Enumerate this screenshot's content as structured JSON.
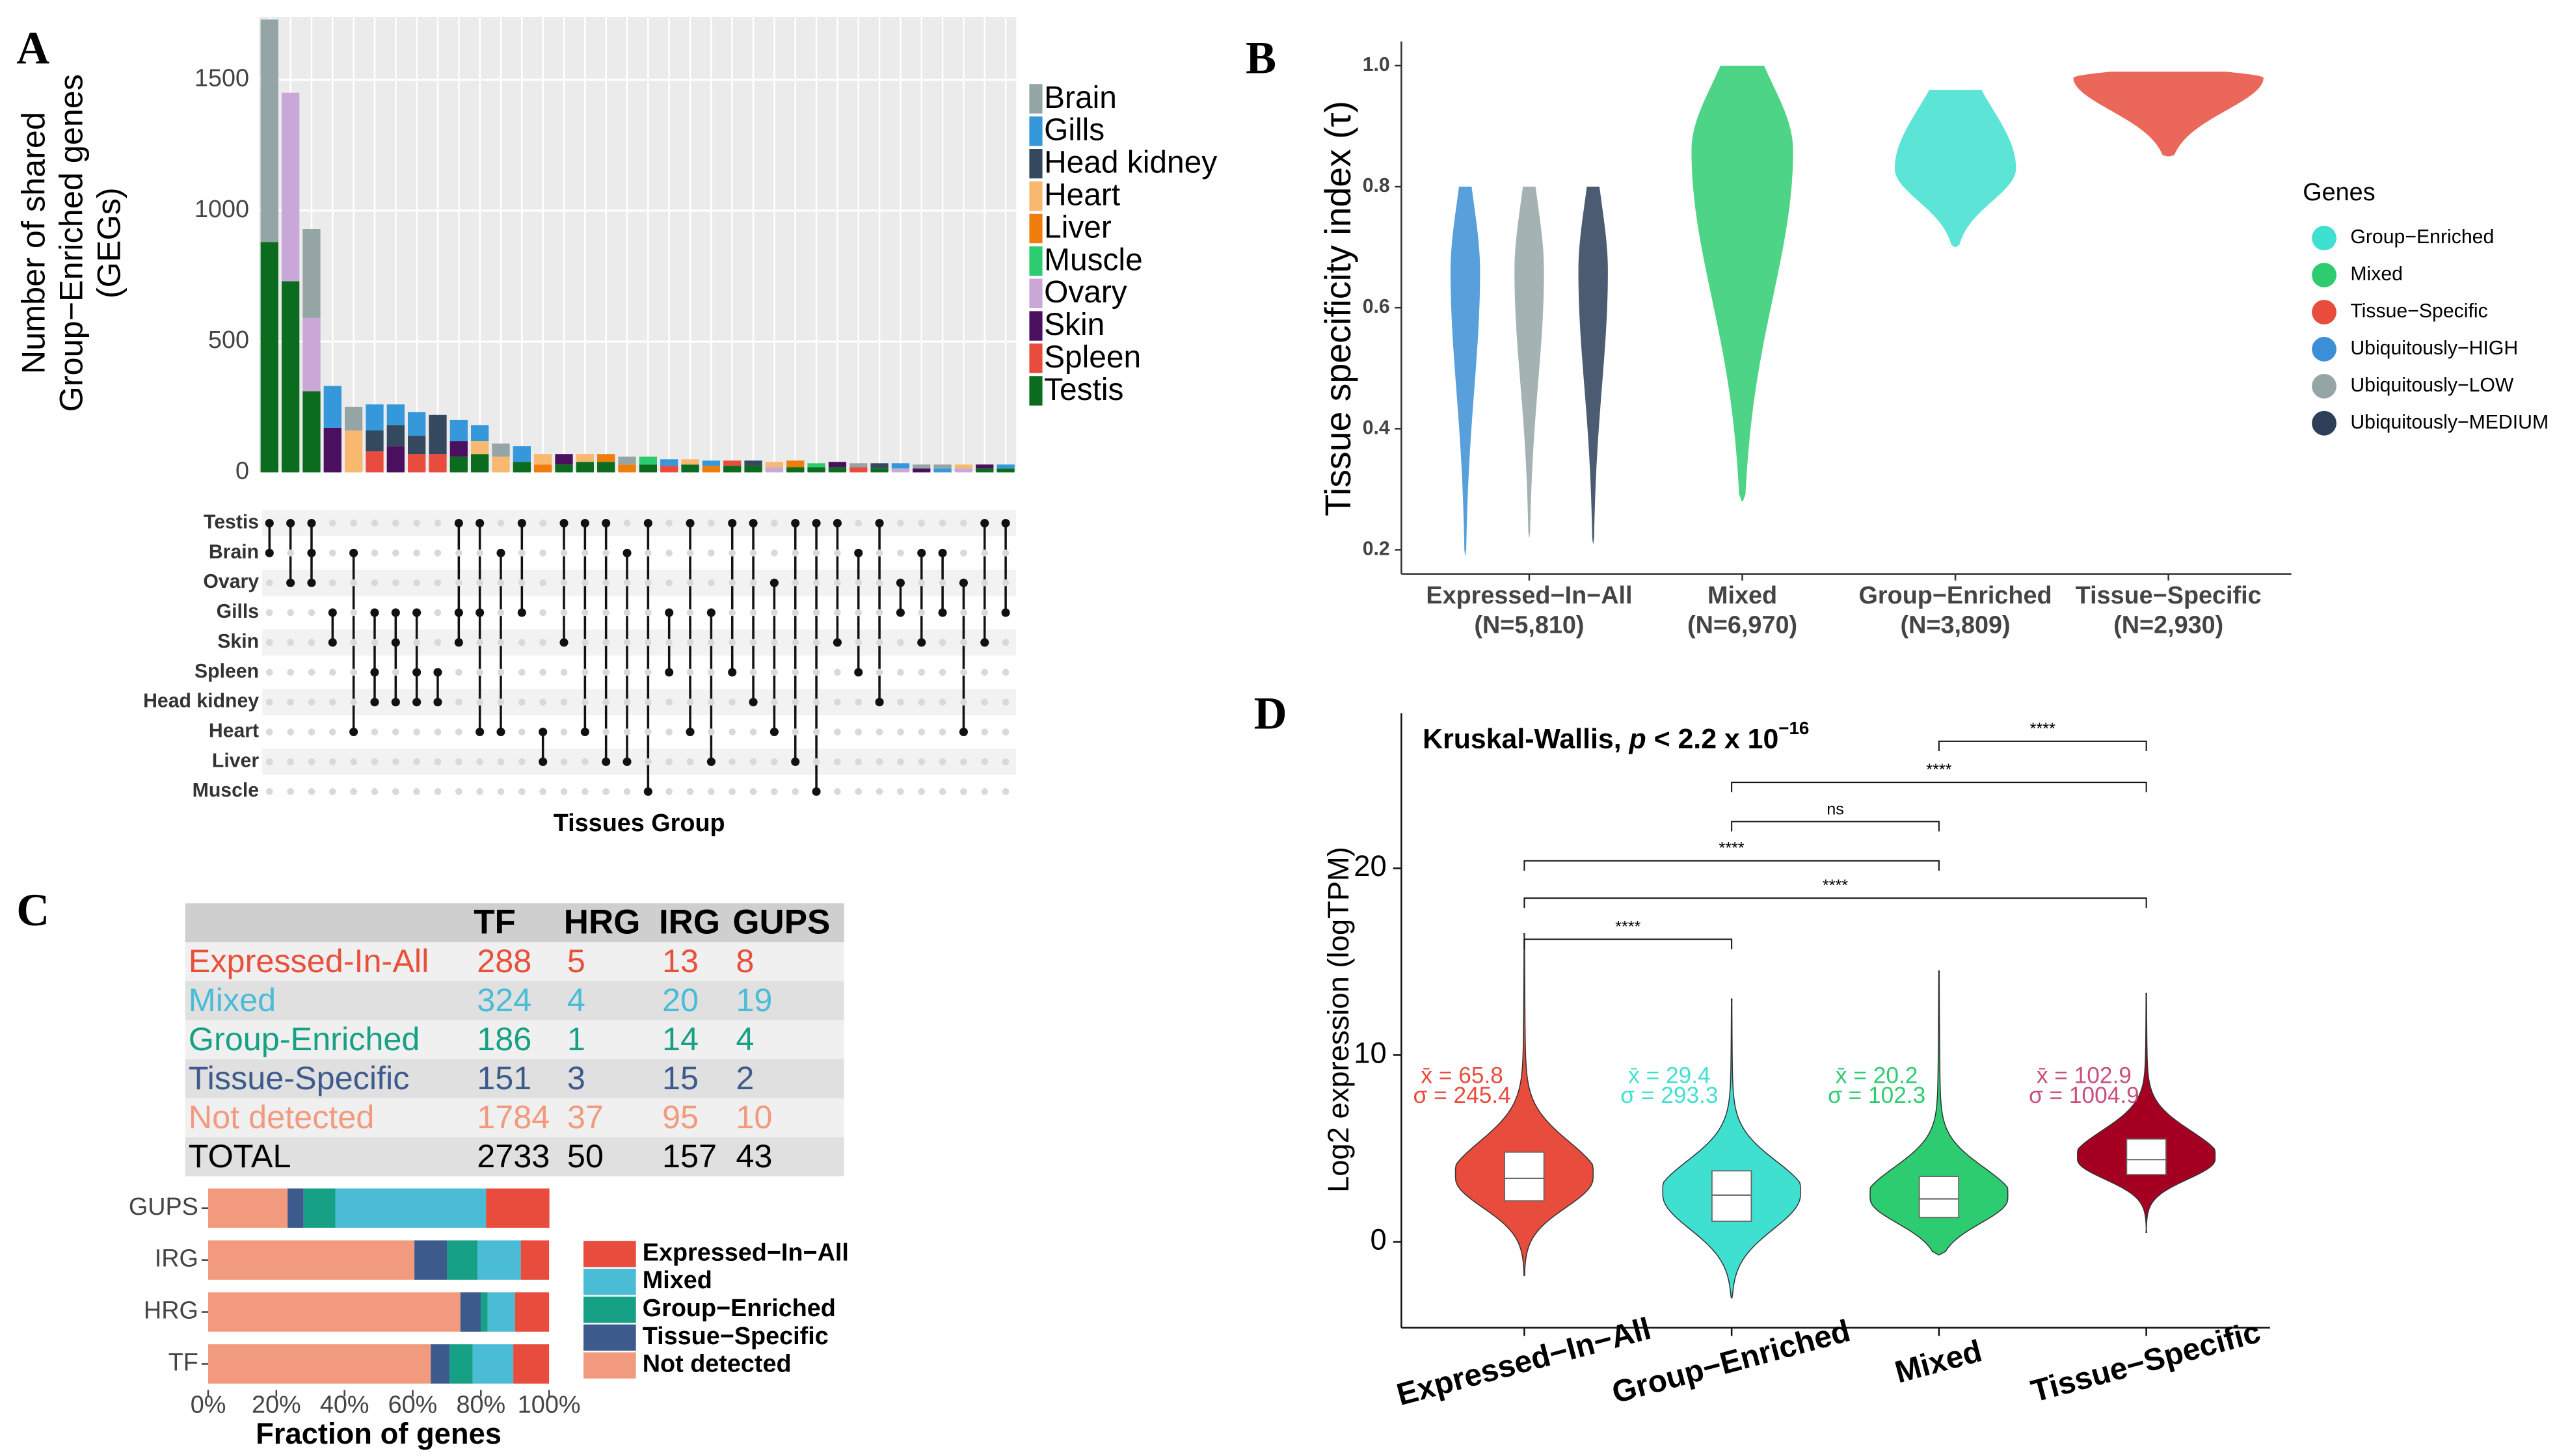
{
  "panel_labels": [
    "A",
    "B",
    "C",
    "D"
  ],
  "chart_data": [
    {
      "type": "upset",
      "ylabel": [
        "Number of shared",
        "Group−Enriched genes",
        "(GEGs)"
      ],
      "xlabel": "Tissues Group",
      "ylim": [
        0,
        1740
      ],
      "yticks": [
        0,
        500,
        1000,
        1500
      ],
      "grid": true,
      "matrix_rows": [
        "Testis",
        "Brain",
        "Ovary",
        "Gills",
        "Skin",
        "Spleen",
        "Head kidney",
        "Heart",
        "Liver",
        "Muscle"
      ],
      "series": [
        {
          "name": "Brain",
          "color": "#95a5a6",
          "values": [
            850,
            0,
            340,
            0,
            90,
            0,
            0,
            0,
            0,
            0,
            0,
            50,
            0,
            0,
            0,
            0,
            0,
            30,
            0,
            0,
            0,
            0,
            0,
            0,
            0,
            0,
            0,
            0,
            15,
            0,
            0,
            15,
            15,
            0,
            0,
            0
          ]
        },
        {
          "name": "Gills",
          "color": "#3498db",
          "values": [
            0,
            0,
            0,
            160,
            0,
            100,
            80,
            90,
            0,
            80,
            60,
            0,
            60,
            0,
            0,
            0,
            0,
            0,
            0,
            25,
            0,
            20,
            0,
            0,
            0,
            0,
            0,
            0,
            0,
            0,
            20,
            0,
            15,
            0,
            0,
            15
          ]
        },
        {
          "name": "Head kidney",
          "color": "#34495e",
          "values": [
            0,
            0,
            0,
            0,
            0,
            80,
            80,
            70,
            150,
            0,
            0,
            0,
            0,
            0,
            0,
            0,
            0,
            0,
            0,
            0,
            0,
            0,
            0,
            20,
            0,
            0,
            0,
            0,
            0,
            20,
            0,
            0,
            0,
            0,
            0,
            0
          ]
        },
        {
          "name": "Heart",
          "color": "#f8b870",
          "values": [
            0,
            0,
            0,
            0,
            160,
            0,
            0,
            0,
            0,
            0,
            50,
            60,
            0,
            40,
            0,
            30,
            0,
            0,
            0,
            0,
            20,
            0,
            0,
            0,
            20,
            0,
            0,
            0,
            0,
            0,
            0,
            0,
            0,
            15,
            0,
            0
          ]
        },
        {
          "name": "Liver",
          "color": "#ee7d0c",
          "values": [
            0,
            0,
            0,
            0,
            0,
            0,
            0,
            0,
            0,
            0,
            0,
            0,
            0,
            30,
            0,
            0,
            30,
            30,
            0,
            0,
            0,
            25,
            0,
            0,
            0,
            25,
            0,
            0,
            0,
            0,
            0,
            0,
            0,
            0,
            0,
            0
          ]
        },
        {
          "name": "Muscle",
          "color": "#2ecc71",
          "values": [
            0,
            0,
            0,
            0,
            0,
            0,
            0,
            0,
            0,
            0,
            0,
            0,
            0,
            0,
            0,
            0,
            0,
            0,
            30,
            0,
            0,
            0,
            0,
            0,
            0,
            0,
            15,
            0,
            0,
            0,
            0,
            0,
            0,
            0,
            0,
            0
          ]
        },
        {
          "name": "Ovary",
          "color": "#c9a7d6",
          "values": [
            0,
            720,
            280,
            0,
            0,
            0,
            0,
            0,
            0,
            0,
            0,
            0,
            0,
            0,
            0,
            0,
            0,
            0,
            0,
            0,
            0,
            0,
            0,
            0,
            20,
            0,
            0,
            0,
            0,
            0,
            15,
            0,
            0,
            15,
            0,
            0
          ]
        },
        {
          "name": "Skin",
          "color": "#4a0f5e",
          "values": [
            0,
            0,
            0,
            170,
            0,
            0,
            100,
            0,
            0,
            60,
            0,
            0,
            0,
            0,
            40,
            0,
            0,
            0,
            0,
            0,
            0,
            0,
            0,
            0,
            0,
            0,
            0,
            20,
            0,
            0,
            0,
            15,
            0,
            0,
            15,
            0
          ]
        },
        {
          "name": "Spleen",
          "color": "#e74c3c",
          "values": [
            0,
            0,
            0,
            0,
            0,
            80,
            0,
            70,
            70,
            0,
            0,
            0,
            0,
            0,
            0,
            0,
            0,
            0,
            0,
            25,
            0,
            0,
            20,
            0,
            0,
            0,
            0,
            0,
            20,
            0,
            0,
            0,
            0,
            0,
            0,
            0
          ]
        },
        {
          "name": "Testis",
          "color": "#0b6b1e",
          "values": [
            880,
            730,
            310,
            0,
            0,
            0,
            0,
            0,
            0,
            60,
            70,
            0,
            40,
            0,
            30,
            40,
            40,
            0,
            30,
            0,
            30,
            0,
            25,
            25,
            0,
            20,
            20,
            20,
            0,
            15,
            0,
            0,
            0,
            0,
            15,
            15
          ]
        }
      ]
    },
    {
      "type": "violin_tau",
      "ylabel": "Tissue specificity index (τ)",
      "categories": [
        "Expressed−In−All",
        "Mixed",
        "Group−Enriched",
        "Tissue−Specific"
      ],
      "category_notes": [
        "(N=5,810)",
        "(N=6,970)",
        "(N=3,809)",
        "(N=2,930)"
      ],
      "ylim": [
        0.16,
        1.04
      ],
      "yticks": [
        0.2,
        0.4,
        0.6,
        0.8,
        {
          "value": 1,
          "label": "1.0"
        }
      ],
      "legend_title": "Genes",
      "series": [
        {
          "name": "Group−Enriched",
          "color": "#40e0d0",
          "category": 2,
          "min": 0.7,
          "max": 0.96,
          "peak": 0.83
        },
        {
          "name": "Mixed",
          "color": "#2ecc71",
          "category": 1,
          "min": 0.28,
          "max": 1.0,
          "peak": 0.86
        },
        {
          "name": "Tissue−Specific",
          "color": "#e74c3c",
          "category": 3,
          "min": 0.85,
          "max": 0.99,
          "peak": 0.98
        },
        {
          "name": "Ubiquitously−HIGH",
          "color": "#3a8fd6",
          "category": 0,
          "min": 0.19,
          "max": 0.8,
          "peak": 0.66
        },
        {
          "name": "Ubiquitously−LOW",
          "color": "#95a5a6",
          "category": 0,
          "min": 0.22,
          "max": 0.8,
          "peak": 0.66
        },
        {
          "name": "Ubiquitously−MEDIUM",
          "color": "#2c3e58",
          "category": 0,
          "min": 0.21,
          "max": 0.8,
          "peak": 0.66
        }
      ]
    },
    {
      "type": "stacked_barh",
      "categories": [
        "GUPS",
        "IRG",
        "HRG",
        "TF"
      ],
      "xlim": [
        0,
        100
      ],
      "xlabel": "Fraction of genes",
      "xticks": [
        {
          "value": 0,
          "label": "0%"
        },
        {
          "value": 20,
          "label": "20%"
        },
        {
          "value": 40,
          "label": "40%"
        },
        {
          "value": 60,
          "label": "60%"
        },
        {
          "value": 80,
          "label": "80%"
        },
        {
          "value": 100,
          "label": "100%"
        }
      ],
      "series": [
        {
          "name": "Expressed−In−All",
          "color": "#e74c3c",
          "values": [
            18.6,
            8.3,
            10,
            10.5
          ]
        },
        {
          "name": "Mixed",
          "color": "#4bbcd6",
          "values": [
            44.2,
            12.7,
            8,
            11.9
          ]
        },
        {
          "name": "Group−Enriched",
          "color": "#16a085",
          "values": [
            9.3,
            8.9,
            2,
            6.8
          ]
        },
        {
          "name": "Tissue−Specific",
          "color": "#3d5a8c",
          "values": [
            4.7,
            9.6,
            6,
            5.5
          ]
        },
        {
          "name": "Not detected",
          "color": "#f29a7e",
          "values": [
            23.3,
            60.5,
            74,
            65.3
          ]
        }
      ]
    },
    {
      "type": "violin_box",
      "title_parts": [
        "Kruskal-Wallis, ",
        "p",
        " < 2.2 x 10",
        "−16"
      ],
      "ylabel": "Log2 expression (logTPM)",
      "categories": [
        "Expressed−In−All",
        "Group−Enriched",
        "Mixed",
        "Tissue−Specific"
      ],
      "colors": [
        "#e74c3c",
        "#40e0d0",
        "#2ecc71",
        "#a50021"
      ],
      "label_colors": [
        "#e74c3c",
        "#40e0d0",
        "#2ecc71",
        "#c94f7c"
      ],
      "min": [
        -1.8,
        -3,
        -0.7,
        0.5
      ],
      "max": [
        16.5,
        13,
        14.5,
        13.3
      ],
      "q1": [
        2.2,
        1.1,
        1.3,
        3.6
      ],
      "median": [
        3.4,
        2.5,
        2.3,
        4.4
      ],
      "q3": [
        4.8,
        3.8,
        3.5,
        5.5
      ],
      "means": [
        65.8,
        29.4,
        20.2,
        102.9
      ],
      "mean_labels": [
        "x̄ = 65.8",
        "x̄ = 29.4",
        "x̄ = 20.2",
        "x̄ = 102.9"
      ],
      "sds": [
        245.4,
        293.3,
        102.3,
        1004.9
      ],
      "sd_labels": [
        "σ = 245.4",
        "σ = 293.3",
        "σ = 102.3",
        "σ = 1004.9"
      ],
      "ylim": [
        -4.6,
        28.3
      ],
      "yticks": [
        0,
        10,
        20
      ],
      "comparisons": [
        {
          "groups": [
            0,
            1
          ],
          "y": 16.2,
          "label": "****"
        },
        {
          "groups": [
            0,
            3
          ],
          "y": 18.4,
          "label": "****"
        },
        {
          "groups": [
            0,
            2
          ],
          "y": 20.4,
          "label": "****"
        },
        {
          "groups": [
            1,
            2
          ],
          "y": 22.5,
          "label": "ns"
        },
        {
          "groups": [
            1,
            3
          ],
          "y": 24.6,
          "label": "****"
        },
        {
          "groups": [
            2,
            3
          ],
          "y": 26.8,
          "label": "****"
        }
      ]
    }
  ],
  "table": {
    "header": [
      "TF",
      "HRG",
      "IRG",
      "GUPS"
    ],
    "rows": [
      {
        "label": "Expressed-In-All",
        "color": "#e8503a",
        "values": [
          288,
          5,
          13,
          8
        ]
      },
      {
        "label": "Mixed",
        "color": "#4bbcd6",
        "values": [
          324,
          4,
          20,
          19
        ]
      },
      {
        "label": "Group-Enriched",
        "color": "#16a085",
        "values": [
          186,
          1,
          14,
          4
        ]
      },
      {
        "label": "Tissue-Specific",
        "color": "#3d5a8c",
        "values": [
          151,
          3,
          15,
          2
        ]
      },
      {
        "label": "Not detected",
        "color": "#f29a7e",
        "values": [
          1784,
          37,
          95,
          10
        ]
      },
      {
        "label": "TOTAL",
        "color": "#000000",
        "values": [
          2733,
          50,
          157,
          43
        ]
      }
    ]
  }
}
